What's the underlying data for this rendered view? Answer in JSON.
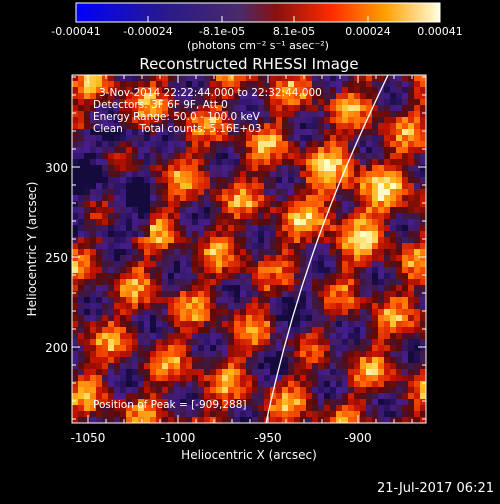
{
  "colorbar": {
    "ticks": [
      "-0.00041",
      "-0.00024",
      "-8.1e-05",
      "8.1e-05",
      "0.00024",
      "0.00041"
    ],
    "unit_label": "(photons cm⁻² s⁻¹ asec⁻²)",
    "range": [
      -0.00041,
      0.00041
    ]
  },
  "chart_data": {
    "type": "heatmap",
    "title": "Reconstructed RHESSI Image",
    "xlabel": "Heliocentric X (arcsec)",
    "ylabel": "Heliocentric Y (arcsec)",
    "xlim": [
      -1065,
      -868
    ],
    "ylim": [
      157,
      340
    ],
    "xticks": [
      "-1050",
      "-1000",
      "-950",
      "-900"
    ],
    "yticks": [
      "200",
      "250",
      "300"
    ],
    "annotations": {
      "time": "3-Nov-2014 22:22:44.000 to 22:32:44.000",
      "detectors": "Detectors: 3F 6F 9F, Att 0",
      "energy": "Energy Range: 50.0 - 100.0 keV",
      "clean": "Clean     Total counts: 5.16E+03",
      "peak": "Position of Peak = [-909,288]"
    },
    "limb": "solar limb arc"
  },
  "timestamp": "21-Jul-2017 06:21"
}
